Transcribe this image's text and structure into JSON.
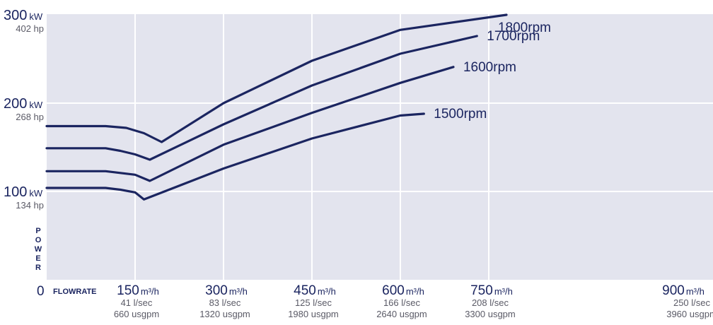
{
  "chart_data": {
    "type": "line",
    "xlabel": "FLOWRATE",
    "ylabel": "POWER",
    "xlim": [
      0,
      900
    ],
    "ylim": [
      0,
      300
    ],
    "grid": true,
    "zero_label": "0",
    "y_ticks": [
      {
        "value": 300,
        "kw": "300",
        "unit": "kW",
        "hp": "402 hp"
      },
      {
        "value": 200,
        "kw": "200",
        "unit": "kW",
        "hp": "268 hp"
      },
      {
        "value": 100,
        "kw": "100",
        "unit": "kW",
        "hp": "134 hp"
      }
    ],
    "x_ticks": [
      {
        "value": 150,
        "main": "150",
        "unit": "m³/h",
        "lsec": "41 l/sec",
        "usgpm": "660 usgpm"
      },
      {
        "value": 300,
        "main": "300",
        "unit": "m³/h",
        "lsec": "83 l/sec",
        "usgpm": "1320 usgpm"
      },
      {
        "value": 450,
        "main": "450",
        "unit": "m³/h",
        "lsec": "125 l/sec",
        "usgpm": "1980 usgpm"
      },
      {
        "value": 600,
        "main": "600",
        "unit": "m³/h",
        "lsec": "166 l/sec",
        "usgpm": "2640 usgpm"
      },
      {
        "value": 750,
        "main": "750",
        "unit": "m³/h",
        "lsec": "208 l/sec",
        "usgpm": "3300 usgpm"
      },
      {
        "value": 900,
        "main": "900",
        "unit": "m³/h",
        "lsec": "250 l/sec",
        "usgpm": "3960 usgpm"
      }
    ],
    "series": [
      {
        "name": "1800rpm",
        "points": [
          [
            0,
            174
          ],
          [
            100,
            174
          ],
          [
            135,
            172
          ],
          [
            165,
            166
          ],
          [
            195,
            156
          ],
          [
            300,
            200
          ],
          [
            450,
            248
          ],
          [
            600,
            283
          ],
          [
            780,
            300
          ]
        ]
      },
      {
        "name": "1700rpm",
        "points": [
          [
            0,
            149
          ],
          [
            100,
            149
          ],
          [
            125,
            146
          ],
          [
            150,
            142
          ],
          [
            175,
            136
          ],
          [
            300,
            176
          ],
          [
            450,
            220
          ],
          [
            600,
            256
          ],
          [
            730,
            276
          ]
        ]
      },
      {
        "name": "1600rpm",
        "points": [
          [
            0,
            123
          ],
          [
            100,
            123
          ],
          [
            125,
            121
          ],
          [
            150,
            119
          ],
          [
            175,
            112
          ],
          [
            300,
            153
          ],
          [
            450,
            189
          ],
          [
            600,
            223
          ],
          [
            690,
            241
          ]
        ]
      },
      {
        "name": "1500rpm",
        "points": [
          [
            0,
            104
          ],
          [
            100,
            104
          ],
          [
            125,
            102
          ],
          [
            150,
            99
          ],
          [
            165,
            91
          ],
          [
            300,
            126
          ],
          [
            450,
            160
          ],
          [
            600,
            186
          ],
          [
            640,
            188
          ]
        ]
      }
    ],
    "colors": {
      "line": "#1b2560",
      "plot_bg": "#e3e4ee",
      "grid": "#ffffff"
    }
  }
}
